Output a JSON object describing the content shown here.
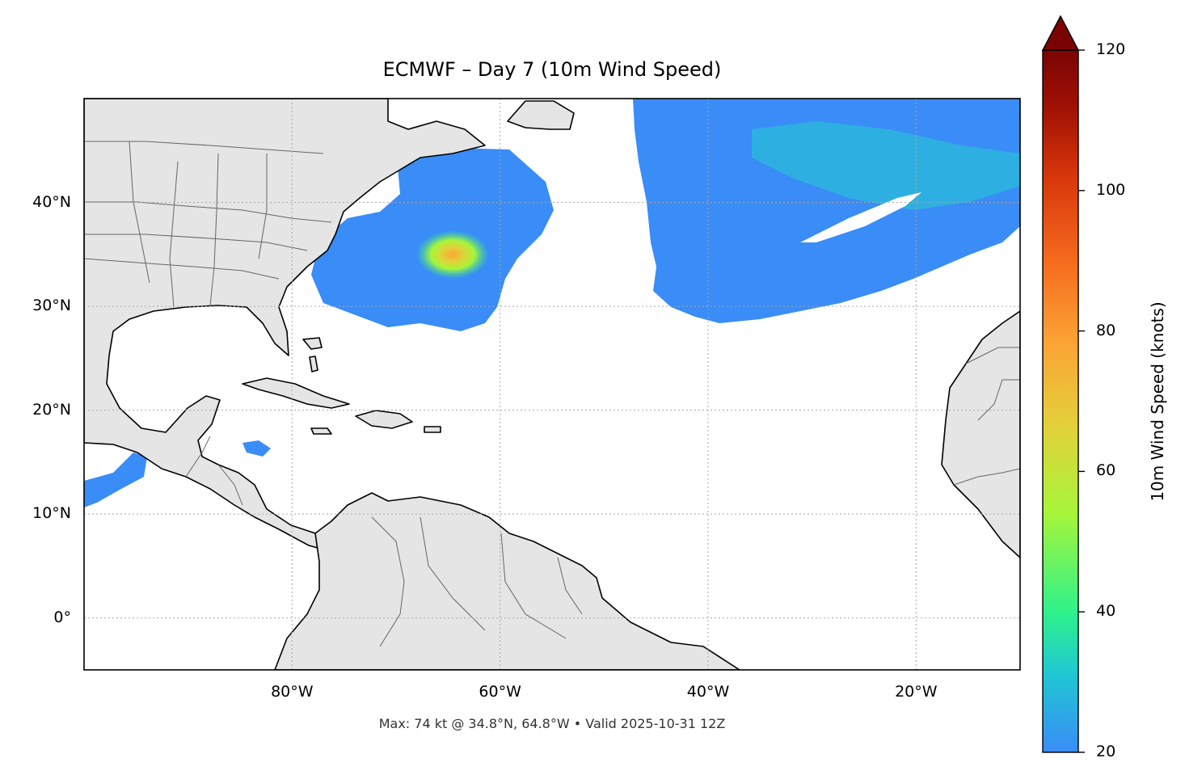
{
  "title": "ECMWF – Day 7 (10m Wind Speed)",
  "footer": "Max: 74 kt @ 34.8°N, 64.8°W • Valid 2025-10-31 12Z",
  "map": {
    "extent": {
      "lon_min": -100,
      "lon_max": -10,
      "lat_min": -5,
      "lat_max": 50
    },
    "lat_ticks": [
      {
        "value": 40,
        "label": "40°N"
      },
      {
        "value": 30,
        "label": "30°N"
      },
      {
        "value": 20,
        "label": "20°N"
      },
      {
        "value": 10,
        "label": "10°N"
      },
      {
        "value": 0,
        "label": "0°"
      }
    ],
    "lon_ticks": [
      {
        "value": -80,
        "label": "80°W"
      },
      {
        "value": -60,
        "label": "60°W"
      },
      {
        "value": -40,
        "label": "40°W"
      },
      {
        "value": -20,
        "label": "20°W"
      }
    ],
    "grid": "dotted",
    "land_color": "#e5e5e5",
    "coast_color": "#000000",
    "border_color": "#666666",
    "max_marker": {
      "value_kt": 74,
      "lat": 34.8,
      "lon": -64.8
    }
  },
  "colorbar": {
    "label": "10m Wind Speed (knots)",
    "min": 20,
    "max": 120,
    "extend": "max",
    "colormap": "turbo",
    "ticks": [
      {
        "value": 20,
        "label": "20"
      },
      {
        "value": 40,
        "label": "40"
      },
      {
        "value": 60,
        "label": "60"
      },
      {
        "value": 80,
        "label": "80"
      },
      {
        "value": 100,
        "label": "100"
      },
      {
        "value": 120,
        "label": "120"
      }
    ],
    "colors": [
      "#3a8cf7",
      "#1fc7d4",
      "#2ef28a",
      "#a6f53a",
      "#e1d23a",
      "#fba535",
      "#f56a1e",
      "#d7360a",
      "#a01004",
      "#7a0403"
    ]
  }
}
